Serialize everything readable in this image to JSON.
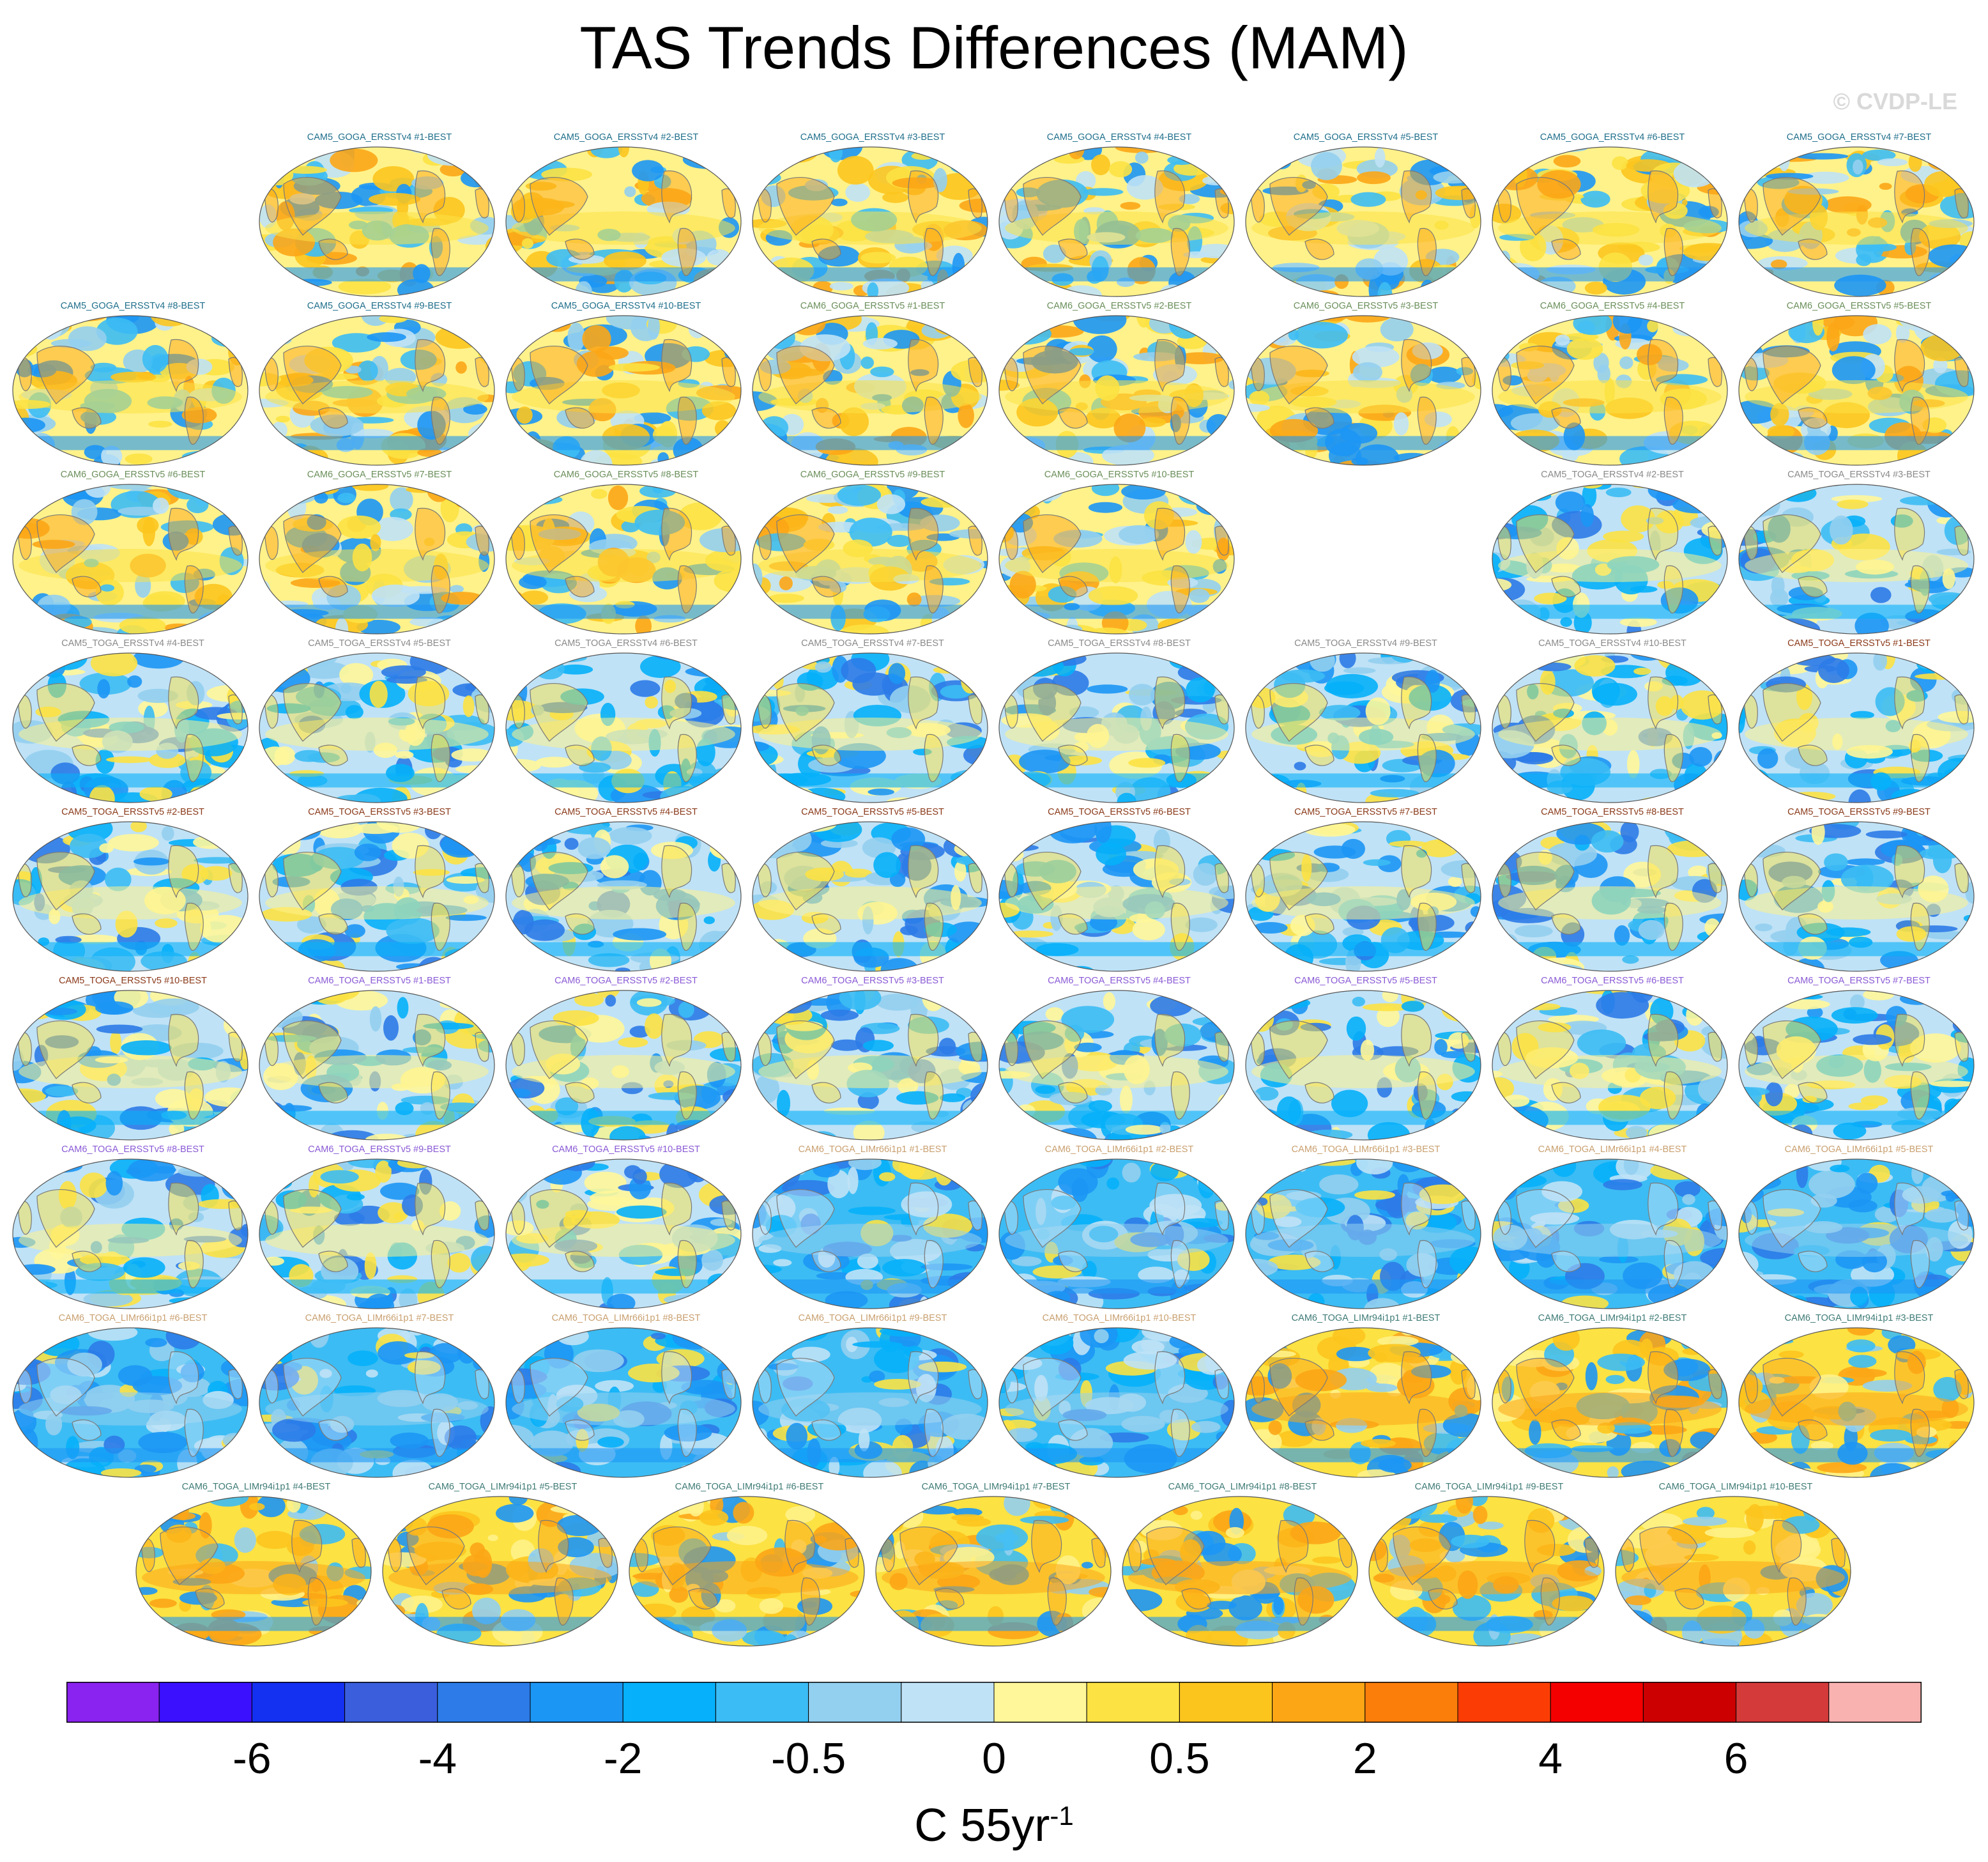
{
  "title": "TAS Trends Differences (MAM)",
  "watermark": "© CVDP-LE",
  "colorbar": {
    "units": "C 55yr",
    "units_exponent": "-1",
    "tick_labels": [
      "-6",
      "-4",
      "-2",
      "-0.5",
      "0",
      "0.5",
      "2",
      "4",
      "6"
    ],
    "colors": [
      "#8a22f0",
      "#3a10ff",
      "#1430f0",
      "#3a5edc",
      "#2c7be8",
      "#1c96f5",
      "#06b0fa",
      "#3cbcf4",
      "#93cfef",
      "#bfe2f6",
      "#fff79a",
      "#fce243",
      "#fcc51e",
      "#fca616",
      "#fb7e0a",
      "#fb3d05",
      "#f40000",
      "#cc0000",
      "#d43a3a",
      "#fab2b0"
    ]
  },
  "chart_data": {
    "type": "heatmap",
    "title": "TAS Trends Differences (MAM)",
    "colorbar_label": "C 55yr-1",
    "colorbar_ticks": [
      -6,
      -4,
      -2,
      -0.5,
      0,
      0.5,
      2,
      4,
      6
    ],
    "panel_rows": [
      [
        "",
        "CAM5_GOGA_ERSSTv4 #1-BEST",
        "CAM5_GOGA_ERSSTv4 #2-BEST",
        "CAM5_GOGA_ERSSTv4 #3-BEST",
        "CAM5_GOGA_ERSSTv4 #4-BEST",
        "CAM5_GOGA_ERSSTv4 #5-BEST",
        "CAM5_GOGA_ERSSTv4 #6-BEST",
        "CAM5_GOGA_ERSSTv4 #7-BEST"
      ],
      [
        "CAM5_GOGA_ERSSTv4 #8-BEST",
        "CAM5_GOGA_ERSSTv4 #9-BEST",
        "CAM5_GOGA_ERSSTv4 #10-BEST",
        "CAM6_GOGA_ERSSTv5 #1-BEST",
        "CAM6_GOGA_ERSSTv5 #2-BEST",
        "CAM6_GOGA_ERSSTv5 #3-BEST",
        "CAM6_GOGA_ERSSTv5 #4-BEST",
        "CAM6_GOGA_ERSSTv5 #5-BEST"
      ],
      [
        "CAM6_GOGA_ERSSTv5 #6-BEST",
        "CAM6_GOGA_ERSSTv5 #7-BEST",
        "CAM6_GOGA_ERSSTv5 #8-BEST",
        "CAM6_GOGA_ERSSTv5 #9-BEST",
        "CAM6_GOGA_ERSSTv5 #10-BEST",
        "",
        "CAM5_TOGA_ERSSTv4 #2-BEST",
        "CAM5_TOGA_ERSSTv4 #3-BEST"
      ],
      [
        "CAM5_TOGA_ERSSTv4 #4-BEST",
        "CAM5_TOGA_ERSSTv4 #5-BEST",
        "CAM5_TOGA_ERSSTv4 #6-BEST",
        "CAM5_TOGA_ERSSTv4 #7-BEST",
        "CAM5_TOGA_ERSSTv4 #8-BEST",
        "CAM5_TOGA_ERSSTv4 #9-BEST",
        "CAM5_TOGA_ERSSTv4 #10-BEST",
        "CAM5_TOGA_ERSSTv5 #1-BEST"
      ],
      [
        "CAM5_TOGA_ERSSTv5 #2-BEST",
        "CAM5_TOGA_ERSSTv5 #3-BEST",
        "CAM5_TOGA_ERSSTv5 #4-BEST",
        "CAM5_TOGA_ERSSTv5 #5-BEST",
        "CAM5_TOGA_ERSSTv5 #6-BEST",
        "CAM5_TOGA_ERSSTv5 #7-BEST",
        "CAM5_TOGA_ERSSTv5 #8-BEST",
        "CAM5_TOGA_ERSSTv5 #9-BEST"
      ],
      [
        "CAM5_TOGA_ERSSTv5 #10-BEST",
        "CAM6_TOGA_ERSSTv5 #1-BEST",
        "CAM6_TOGA_ERSSTv5 #2-BEST",
        "CAM6_TOGA_ERSSTv5 #3-BEST",
        "CAM6_TOGA_ERSSTv5 #4-BEST",
        "CAM6_TOGA_ERSSTv5 #5-BEST",
        "CAM6_TOGA_ERSSTv5 #6-BEST",
        "CAM6_TOGA_ERSSTv5 #7-BEST"
      ],
      [
        "CAM6_TOGA_ERSSTv5 #8-BEST",
        "CAM6_TOGA_ERSSTv5 #9-BEST",
        "CAM6_TOGA_ERSSTv5 #10-BEST",
        "CAM6_TOGA_LIMr66i1p1 #1-BEST",
        "CAM6_TOGA_LIMr66i1p1 #2-BEST",
        "CAM6_TOGA_LIMr66i1p1 #3-BEST",
        "CAM6_TOGA_LIMr66i1p1 #4-BEST",
        "CAM6_TOGA_LIMr66i1p1 #5-BEST"
      ],
      [
        "CAM6_TOGA_LIMr66i1p1 #6-BEST",
        "CAM6_TOGA_LIMr66i1p1 #7-BEST",
        "CAM6_TOGA_LIMr66i1p1 #8-BEST",
        "CAM6_TOGA_LIMr66i1p1 #9-BEST",
        "CAM6_TOGA_LIMr66i1p1 #10-BEST",
        "CAM6_TOGA_LIMr94i1p1 #1-BEST",
        "CAM6_TOGA_LIMr94i1p1 #2-BEST",
        "CAM6_TOGA_LIMr94i1p1 #3-BEST"
      ],
      [
        "CAM6_TOGA_LIMr94i1p1 #4-BEST",
        "CAM6_TOGA_LIMr94i1p1 #5-BEST",
        "CAM6_TOGA_LIMr94i1p1 #6-BEST",
        "CAM6_TOGA_LIMr94i1p1 #7-BEST",
        "CAM6_TOGA_LIMr94i1p1 #8-BEST",
        "CAM6_TOGA_LIMr94i1p1 #9-BEST",
        "CAM6_TOGA_LIMr94i1p1 #10-BEST"
      ]
    ],
    "label_colors": {
      "CAM5_GOGA_ERSSTv4": "#1f6f8b",
      "CAM6_GOGA_ERSSTv5": "#6a8f5a",
      "CAM5_TOGA_ERSSTv4": "#8a8a8a",
      "CAM5_TOGA_ERSSTv5": "#8b3a1a",
      "CAM6_TOGA_ERSSTv5": "#8a5ad6",
      "CAM6_TOGA_LIMr66i1p1": "#c9a070",
      "CAM6_TOGA_LIMr94i1p1": "#3e7b76"
    }
  }
}
